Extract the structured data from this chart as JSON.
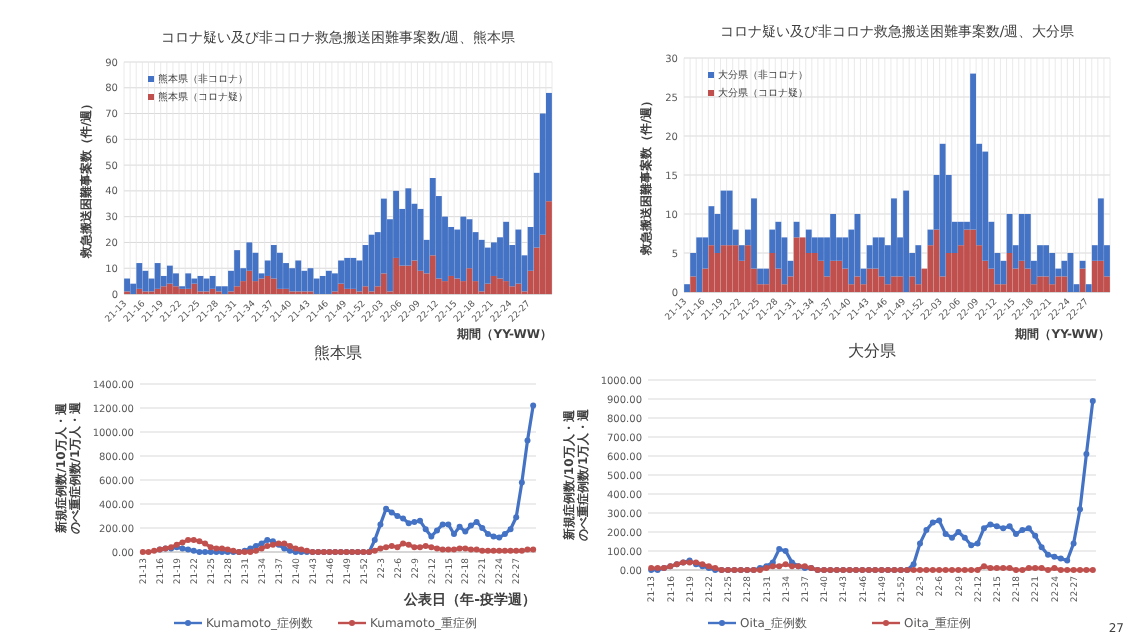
{
  "chart_data": [
    {
      "type": "bar",
      "stacked": true,
      "title": "コロナ疑い及び非コロナ救急搬送困難事案数/週、熊本県",
      "ylabel": "救急搬送困難事案数（件/週）",
      "xlabel": "期間（YY-WW）",
      "ylim": [
        0,
        90
      ],
      "yticks": [
        0,
        10,
        20,
        30,
        40,
        50,
        60,
        70,
        80,
        90
      ],
      "grid": true,
      "legend": "top left",
      "categories": [
        "21-13",
        null,
        null,
        "21-16",
        null,
        null,
        "21-19",
        null,
        null,
        "21-22",
        null,
        null,
        "21-25",
        null,
        null,
        "21-28",
        null,
        null,
        "21-31",
        null,
        null,
        "21-34",
        null,
        null,
        "21-37",
        null,
        null,
        "21-40",
        null,
        null,
        "21-43",
        null,
        null,
        "21-46",
        null,
        null,
        "21-49",
        null,
        null,
        "21-52",
        null,
        null,
        "22-03",
        null,
        null,
        "22-06",
        null,
        null,
        "22-09",
        null,
        null,
        "22-12",
        null,
        null,
        "22-15",
        null,
        null,
        "22-18",
        null,
        null,
        "22-21",
        null,
        null,
        "22-24",
        null,
        null,
        "22-27",
        null,
        null,
        null
      ],
      "series": [
        {
          "name": "熊本県（コロナ疑）",
          "color": "#c0504d",
          "values": [
            1,
            0,
            2,
            1,
            1,
            2,
            3,
            4,
            3,
            2,
            2,
            4,
            1,
            1,
            2,
            1,
            0,
            1,
            3,
            5,
            9,
            5,
            6,
            7,
            6,
            2,
            2,
            1,
            1,
            1,
            1,
            0,
            0,
            0,
            1,
            4,
            2,
            2,
            1,
            3,
            1,
            3,
            8,
            1,
            14,
            11,
            11,
            13,
            9,
            8,
            15,
            6,
            5,
            7,
            6,
            5,
            10,
            5,
            1,
            4,
            7,
            6,
            5,
            3,
            4,
            1,
            9,
            18,
            23,
            36
          ]
        },
        {
          "name": "熊本県（非コロナ）",
          "color": "#4472c4",
          "values": [
            5,
            4,
            10,
            8,
            5,
            10,
            4,
            7,
            5,
            1,
            6,
            2,
            6,
            5,
            5,
            2,
            3,
            8,
            14,
            5,
            11,
            11,
            2,
            6,
            13,
            14,
            10,
            9,
            12,
            8,
            9,
            6,
            7,
            9,
            7,
            9,
            12,
            12,
            12,
            16,
            22,
            21,
            29,
            28,
            26,
            22,
            30,
            22,
            24,
            13,
            30,
            32,
            25,
            19,
            19,
            25,
            19,
            19,
            20,
            14,
            13,
            16,
            23,
            16,
            21,
            14,
            17,
            29,
            47,
            42
          ]
        }
      ]
    },
    {
      "type": "bar",
      "stacked": true,
      "title": "コロナ疑い及び非コロナ救急搬送困難事案数/週、大分県",
      "ylabel": "救急搬送困難事案数（件/週）",
      "xlabel": "期間（YY-WW）",
      "ylim": [
        0,
        30
      ],
      "yticks": [
        0,
        5,
        10,
        15,
        20,
        25,
        30
      ],
      "grid": true,
      "legend": "top left",
      "categories": [
        "21-13",
        null,
        null,
        "21-16",
        null,
        null,
        "21-19",
        null,
        null,
        "21-22",
        null,
        null,
        "21-25",
        null,
        null,
        "21-28",
        null,
        null,
        "21-31",
        null,
        null,
        "21-34",
        null,
        null,
        "21-37",
        null,
        null,
        "21-40",
        null,
        null,
        "21-43",
        null,
        null,
        "21-46",
        null,
        null,
        "21-49",
        null,
        null,
        "21-52",
        null,
        null,
        "22-03",
        null,
        null,
        "22-06",
        null,
        null,
        "22-09",
        null,
        null,
        "22-12",
        null,
        null,
        "22-15",
        null,
        null,
        "22-18",
        null,
        null,
        "22-21",
        null,
        null,
        "22-24",
        null,
        null,
        "22-27",
        null,
        null,
        null
      ],
      "series": [
        {
          "name": "大分県（コロナ疑）",
          "color": "#c0504d",
          "values": [
            0,
            2,
            0,
            3,
            6,
            5,
            6,
            6,
            6,
            4,
            6,
            3,
            1,
            1,
            5,
            3,
            1,
            2,
            7,
            7,
            5,
            5,
            4,
            2,
            4,
            4,
            3,
            1,
            2,
            1,
            3,
            3,
            2,
            1,
            2,
            2,
            0,
            2,
            1,
            3,
            6,
            8,
            2,
            5,
            5,
            6,
            8,
            8,
            6,
            4,
            3,
            1,
            1,
            5,
            3,
            4,
            3,
            1,
            2,
            2,
            1,
            2,
            2,
            0,
            0,
            3,
            0,
            4,
            4,
            2
          ]
        },
        {
          "name": "大分県（非コロナ）",
          "color": "#4472c4",
          "values": [
            1,
            3,
            7,
            4,
            5,
            5,
            7,
            7,
            2,
            2,
            2,
            9,
            2,
            2,
            3,
            6,
            6,
            2,
            2,
            0,
            3,
            2,
            3,
            5,
            6,
            3,
            4,
            7,
            8,
            2,
            3,
            4,
            5,
            5,
            10,
            5,
            13,
            3,
            5,
            0,
            2,
            7,
            17,
            10,
            4,
            3,
            1,
            20,
            13,
            14,
            6,
            4,
            3,
            5,
            3,
            6,
            7,
            3,
            4,
            4,
            4,
            1,
            2,
            5,
            1,
            1,
            1,
            2,
            8,
            4
          ]
        }
      ]
    },
    {
      "type": "line",
      "title": "熊本県",
      "ylabel": "新規症例数/10万人・週のべ重症例数/1万人・週",
      "xlabel": "公表日（年-疫学週）",
      "ylim": [
        0,
        1400
      ],
      "yticks": [
        {
          "value": 0,
          "label": "0.00"
        },
        {
          "value": 200,
          "label": "200.00"
        },
        {
          "value": 400,
          "label": "400.00"
        },
        {
          "value": 600,
          "label": "600.00"
        },
        {
          "value": 800,
          "label": "800.00"
        },
        {
          "value": 1000,
          "label": "1000.00"
        },
        {
          "value": 1200,
          "label": "1200.00"
        },
        {
          "value": 1400,
          "label": "1400.00"
        }
      ],
      "grid": "y",
      "legend": "bottom",
      "marker": "circle",
      "categories": [
        "21-13",
        null,
        null,
        "21-16",
        null,
        null,
        "21-19",
        null,
        null,
        "21-22",
        null,
        null,
        "21-25",
        null,
        null,
        "21-28",
        null,
        null,
        "21-31",
        null,
        null,
        "21-34",
        null,
        null,
        "21-37",
        null,
        null,
        "21-40",
        null,
        null,
        "21-43",
        null,
        null,
        "21-46",
        null,
        null,
        "21-49",
        null,
        null,
        "21-52",
        null,
        null,
        "22-3",
        null,
        null,
        "22-6",
        null,
        null,
        "22-9",
        null,
        null,
        "22-12",
        null,
        null,
        "22-15",
        null,
        null,
        "22-18",
        null,
        null,
        "22-21",
        null,
        null,
        "22-24",
        null,
        null,
        "22-27",
        null,
        null,
        null
      ],
      "series": [
        {
          "name": "Kumamoto_症例数",
          "color": "#4472c4",
          "values": [
            null,
            null,
            null,
            20,
            30,
            30,
            40,
            30,
            20,
            10,
            0,
            0,
            0,
            0,
            0,
            0,
            0,
            0,
            10,
            30,
            50,
            70,
            100,
            90,
            60,
            30,
            10,
            0,
            0,
            0,
            0,
            0,
            0,
            0,
            0,
            0,
            0,
            0,
            0,
            0,
            0,
            100,
            230,
            360,
            330,
            300,
            280,
            240,
            250,
            260,
            190,
            130,
            180,
            230,
            230,
            150,
            210,
            170,
            220,
            250,
            200,
            150,
            130,
            120,
            150,
            190,
            290,
            580,
            930,
            1220
          ]
        },
        {
          "name": "Kumamoto_重症例",
          "color": "#c0504d",
          "values": [
            0,
            0,
            10,
            20,
            30,
            40,
            60,
            80,
            100,
            100,
            90,
            70,
            40,
            30,
            30,
            20,
            10,
            0,
            0,
            0,
            10,
            30,
            50,
            60,
            70,
            70,
            50,
            30,
            20,
            10,
            0,
            0,
            0,
            0,
            0,
            0,
            0,
            0,
            0,
            0,
            0,
            10,
            30,
            40,
            50,
            40,
            70,
            60,
            40,
            40,
            50,
            40,
            30,
            20,
            20,
            20,
            30,
            30,
            20,
            20,
            10,
            10,
            10,
            10,
            10,
            10,
            10,
            10,
            20,
            20
          ]
        }
      ]
    },
    {
      "type": "line",
      "title": "大分県",
      "ylabel": "新規症例数/10万人・週のべ重症例数/1万人・週",
      "ylim": [
        0,
        1000
      ],
      "yticks": [
        {
          "value": 0,
          "label": "0.00"
        },
        {
          "value": 100,
          "label": "100.00"
        },
        {
          "value": 200,
          "label": "200.00"
        },
        {
          "value": 300,
          "label": "300.00"
        },
        {
          "value": 400,
          "label": "400.00"
        },
        {
          "value": 500,
          "label": "500.00"
        },
        {
          "value": 600,
          "label": "600.00"
        },
        {
          "value": 700,
          "label": "700.00"
        },
        {
          "value": 800,
          "label": "800.00"
        },
        {
          "value": 900,
          "label": "900.00"
        },
        {
          "value": 1000,
          "label": "1000.00"
        }
      ],
      "grid": "y",
      "legend": "bottom",
      "marker": "circle",
      "annotations": [
        "27"
      ],
      "categories": [
        "21-13",
        null,
        null,
        "21-16",
        null,
        null,
        "21-19",
        null,
        null,
        "21-22",
        null,
        null,
        "21-25",
        null,
        null,
        "21-28",
        null,
        null,
        "21-31",
        null,
        null,
        "21-34",
        null,
        null,
        "21-37",
        null,
        null,
        "21-40",
        null,
        null,
        "21-43",
        null,
        null,
        "21-46",
        null,
        null,
        "21-49",
        null,
        null,
        "21-52",
        null,
        null,
        "22-3",
        null,
        null,
        "22-6",
        null,
        null,
        "22-9",
        null,
        null,
        "22-12",
        null,
        null,
        "22-15",
        null,
        null,
        "22-18",
        null,
        null,
        "22-21",
        null,
        null,
        "22-24",
        null,
        null,
        "22-27",
        null,
        null,
        null
      ],
      "series": [
        {
          "name": "Oita_症例数",
          "color": "#4472c4",
          "values": [
            0,
            0,
            10,
            20,
            30,
            40,
            50,
            30,
            20,
            10,
            0,
            0,
            0,
            0,
            0,
            0,
            0,
            10,
            20,
            40,
            110,
            100,
            40,
            20,
            10,
            10,
            0,
            0,
            0,
            0,
            0,
            0,
            0,
            0,
            0,
            0,
            0,
            0,
            0,
            0,
            0,
            30,
            140,
            210,
            250,
            260,
            190,
            170,
            200,
            170,
            130,
            140,
            220,
            240,
            230,
            220,
            230,
            190,
            210,
            220,
            180,
            120,
            80,
            70,
            60,
            50,
            140,
            320,
            610,
            890
          ]
        },
        {
          "name": "Oita_重症例",
          "color": "#c0504d",
          "values": [
            10,
            10,
            10,
            20,
            30,
            40,
            40,
            40,
            30,
            20,
            10,
            0,
            0,
            0,
            0,
            0,
            0,
            0,
            10,
            20,
            20,
            30,
            20,
            20,
            20,
            10,
            0,
            0,
            0,
            0,
            0,
            0,
            0,
            0,
            0,
            0,
            0,
            0,
            0,
            0,
            0,
            0,
            0,
            0,
            0,
            0,
            0,
            0,
            0,
            0,
            0,
            0,
            20,
            10,
            10,
            10,
            10,
            0,
            0,
            10,
            10,
            10,
            0,
            10,
            0,
            0,
            0,
            0,
            0,
            0
          ]
        }
      ]
    }
  ]
}
